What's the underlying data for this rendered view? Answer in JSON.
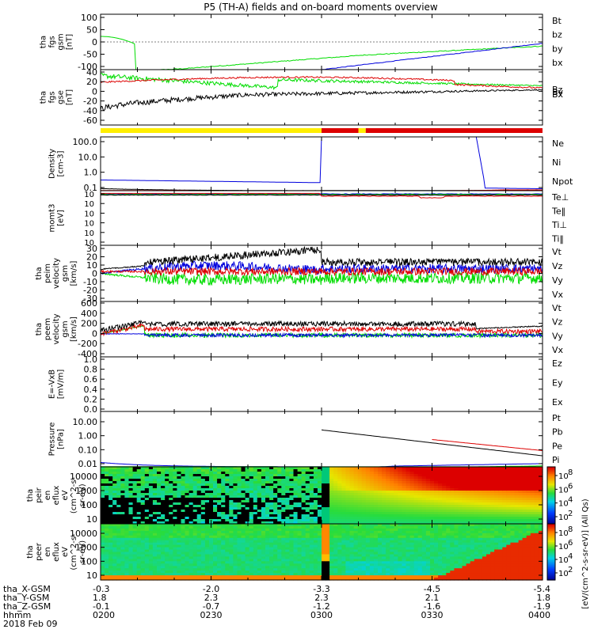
{
  "title": "P5 (TH-A) fields and on-board moments overview",
  "colors": {
    "black": "#000000",
    "red": "#dd0000",
    "green": "#00dd00",
    "blue": "#0000dd",
    "yellow": "#ffee00",
    "axis": "#000000"
  },
  "chart_data": [
    {
      "type": "line",
      "name": "fgs_gsm",
      "ylabel": [
        "tha",
        "fgs",
        "gsm",
        "[nT]"
      ],
      "ylim": [
        -100,
        100
      ],
      "yticks": [
        "100",
        "50",
        "0",
        "-50",
        "-100"
      ],
      "legend": [
        {
          "label": "Bt",
          "color": "#000000"
        },
        {
          "label": "bz",
          "color": "#dd0000"
        },
        {
          "label": "by",
          "color": "#00dd00"
        },
        {
          "label": "bx",
          "color": "#0000dd"
        }
      ]
    },
    {
      "type": "line",
      "name": "fgs_gse",
      "ylabel": [
        "tha",
        "fgs",
        "gse",
        "[nT]"
      ],
      "ylim": [
        -70,
        40
      ],
      "yticks": [
        "40",
        "20",
        "0",
        "-20",
        "-40",
        "-60"
      ],
      "legend": [
        {
          "label": "Bz",
          "color": "#dd0000"
        },
        {
          "label": "By",
          "color": "#00dd00"
        },
        {
          "label": "Bx",
          "color": "#000000"
        }
      ]
    },
    {
      "type": "bar",
      "name": "mode_bar",
      "segments": [
        {
          "from": "0200",
          "to": "0300",
          "color": "#ffee00"
        },
        {
          "from": "0300",
          "to": "0310",
          "color": "#dd0000"
        },
        {
          "from": "0310",
          "to": "0312",
          "color": "#ffee00"
        },
        {
          "from": "0312",
          "to": "0400",
          "color": "#dd0000"
        }
      ]
    },
    {
      "type": "line",
      "name": "density",
      "scale": "log",
      "ylabel": [
        "Density",
        "[cm-3]"
      ],
      "ylim": [
        0.1,
        100
      ],
      "yticks": [
        "100.0",
        "10.0",
        "1.0",
        "0.1"
      ],
      "legend": [
        {
          "label": "Ne",
          "color": "#dd0000"
        },
        {
          "label": "Ni",
          "color": "#000000"
        },
        {
          "label": "Npot",
          "color": "#0000dd"
        }
      ]
    },
    {
      "type": "line",
      "name": "temperature",
      "scale": "log",
      "ylabel": [
        "momt3",
        "[eV]"
      ],
      "yticks": [
        "10",
        "10",
        "10",
        "10",
        "10",
        "10"
      ],
      "legend": [
        {
          "label": "Te⊥",
          "color": "#dd0000"
        },
        {
          "label": "Te‖",
          "color": "#000000"
        },
        {
          "label": "Ti⊥",
          "color": "#0000dd"
        },
        {
          "label": "Ti‖",
          "color": "#00dd00"
        }
      ]
    },
    {
      "type": "line",
      "name": "peim_velocity",
      "ylabel": [
        "tha",
        "peim",
        "velocity",
        "gsm",
        "[km/s]"
      ],
      "ylim": [
        -30,
        30
      ],
      "yticks": [
        "30",
        "20",
        "10",
        "0",
        "-10",
        "-20",
        "-30"
      ],
      "legend": [
        {
          "label": "Vt",
          "color": "#000000"
        },
        {
          "label": "Vz",
          "color": "#dd0000"
        },
        {
          "label": "Vy",
          "color": "#00dd00"
        },
        {
          "label": "Vx",
          "color": "#0000dd"
        }
      ]
    },
    {
      "type": "line",
      "name": "peem_velocity",
      "ylabel": [
        "tha",
        "peem",
        "velocity",
        "gsm",
        "[km/s]"
      ],
      "ylim": [
        -400,
        600
      ],
      "yticks": [
        "600",
        "400",
        "200",
        "0",
        "-200",
        "-400"
      ],
      "legend": [
        {
          "label": "Vt",
          "color": "#000000"
        },
        {
          "label": "Vz",
          "color": "#dd0000"
        },
        {
          "label": "Vy",
          "color": "#00dd00"
        },
        {
          "label": "Vx",
          "color": "#0000dd"
        }
      ]
    },
    {
      "type": "line",
      "name": "efield",
      "ylabel": [
        "E=-VxB",
        "[mV/m]"
      ],
      "ylim": [
        0,
        1
      ],
      "yticks": [
        "1.0",
        "0.8",
        "0.6",
        "0.4",
        "0.2",
        "0.0"
      ],
      "legend": [
        {
          "label": "Ez",
          "color": "#dd0000"
        },
        {
          "label": "Ey",
          "color": "#00dd00"
        },
        {
          "label": "Ex",
          "color": "#0000dd"
        }
      ]
    },
    {
      "type": "line",
      "name": "pressure",
      "scale": "log",
      "ylabel": [
        "Pressure",
        "[nPa]"
      ],
      "ylim": [
        0.005,
        15
      ],
      "yticks": [
        "10.00",
        "1.00",
        "0.10",
        "0.01"
      ],
      "legend": [
        {
          "label": "Pt",
          "color": "#000000"
        },
        {
          "label": "Pb",
          "color": "#dd0000"
        },
        {
          "label": "Pe",
          "color": "#00dd00"
        },
        {
          "label": "Pi",
          "color": "#0000dd"
        }
      ]
    },
    {
      "type": "heatmap",
      "name": "peir_spectrogram",
      "ylabel": [
        "tha",
        "peir",
        "en",
        "eflux",
        "eV",
        "(cm^2-s-",
        "sr-eV)"
      ],
      "yticks": [
        "10000",
        "1000",
        "100",
        "10"
      ],
      "colorbar": {
        "ticks": [
          "10",
          "10",
          "10",
          "10"
        ],
        "exponents": [
          "8",
          "6",
          "4",
          "2"
        ]
      }
    },
    {
      "type": "heatmap",
      "name": "peer_spectrogram",
      "ylabel": [
        "tha",
        "peer",
        "en",
        "eflux",
        "eV",
        "(cm^2-s-",
        "sr-eV)"
      ],
      "yticks": [
        "10000",
        "1000",
        "100",
        "10"
      ],
      "colorbar": {
        "ticks": [
          "10",
          "10",
          "10",
          "10"
        ],
        "exponents": [
          "8",
          "6",
          "4",
          "2"
        ]
      }
    }
  ],
  "colorbar_label": "[eV/(cm^2-s-sr-eV)] (All Qs)",
  "xaxis": {
    "tick_times": [
      "0200",
      "0230",
      "0300",
      "0330",
      "0400"
    ],
    "rows": [
      {
        "label": "tha_X-GSM",
        "values": [
          "-0.3",
          "-2.0",
          "-3.3",
          "-4.5",
          "-5.4"
        ]
      },
      {
        "label": "tha_Y-GSM",
        "values": [
          "1.8",
          "2.3",
          "2.3",
          "2.1",
          "1.8"
        ]
      },
      {
        "label": "tha_Z-GSM",
        "values": [
          "-0.1",
          "-0.7",
          "-1.2",
          "-1.6",
          "-1.9"
        ]
      },
      {
        "label": "hhmm",
        "values": [
          "0200",
          "0230",
          "0300",
          "0330",
          "0400"
        ]
      }
    ],
    "date": "2018 Feb 09"
  }
}
